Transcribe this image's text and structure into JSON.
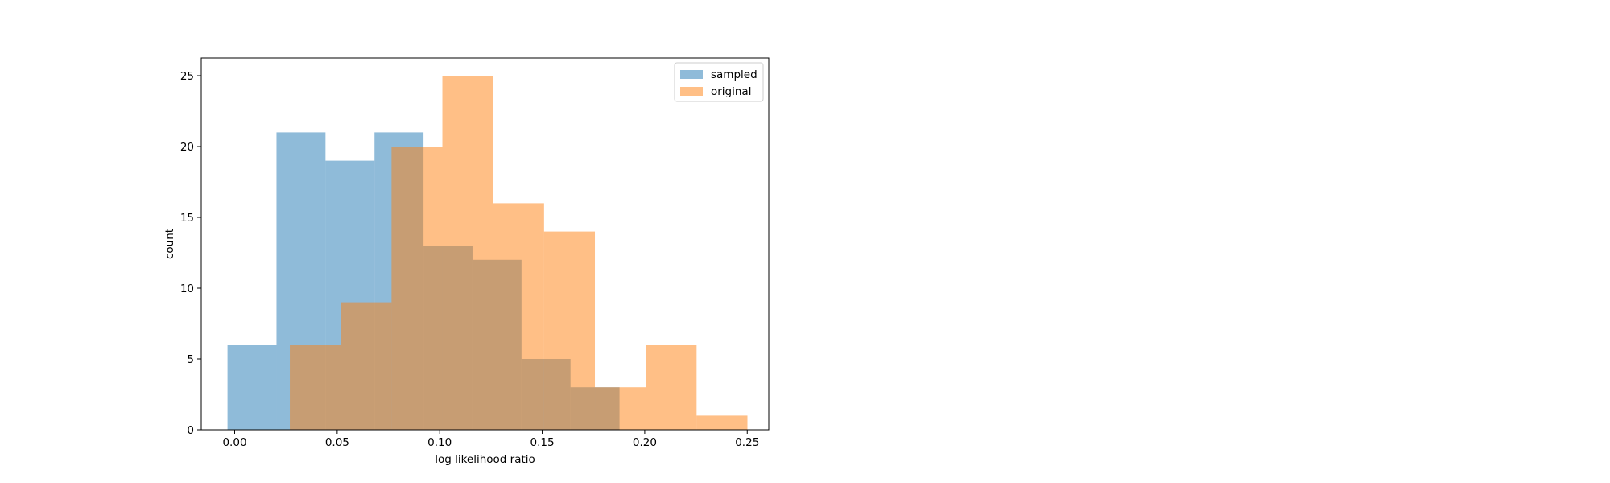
{
  "chart_data": {
    "type": "histogram",
    "xlabel": "log likelihood ratio",
    "ylabel": "count",
    "xlim": [
      -0.0163,
      0.2605
    ],
    "ylim": [
      0,
      26.25
    ],
    "xticks": [
      0.0,
      0.05,
      0.1,
      0.15,
      0.2,
      0.25
    ],
    "xtick_labels": [
      "0.00",
      "0.05",
      "0.10",
      "0.15",
      "0.20",
      "0.25"
    ],
    "yticks": [
      0,
      5,
      10,
      15,
      20,
      25
    ],
    "ytick_labels": [
      "0",
      "5",
      "10",
      "15",
      "20",
      "25"
    ],
    "grid": false,
    "legend_position": "top-right",
    "series": [
      {
        "name": "sampled",
        "color": "#1f77b4",
        "alpha": 0.5,
        "bin_edges": [
          -0.0035,
          0.0204,
          0.0443,
          0.0682,
          0.0921,
          0.116,
          0.1399,
          0.1638,
          0.1877
        ],
        "counts": [
          6,
          21,
          19,
          21,
          13,
          12,
          5,
          3
        ]
      },
      {
        "name": "original",
        "color": "#ff7f0e",
        "alpha": 0.5,
        "bin_edges": [
          0.0269,
          0.0517,
          0.0765,
          0.1013,
          0.1261,
          0.1509,
          0.1757,
          0.2005,
          0.2253,
          0.2501
        ],
        "counts": [
          6,
          9,
          20,
          25,
          16,
          14,
          3,
          6,
          1
        ]
      }
    ]
  }
}
